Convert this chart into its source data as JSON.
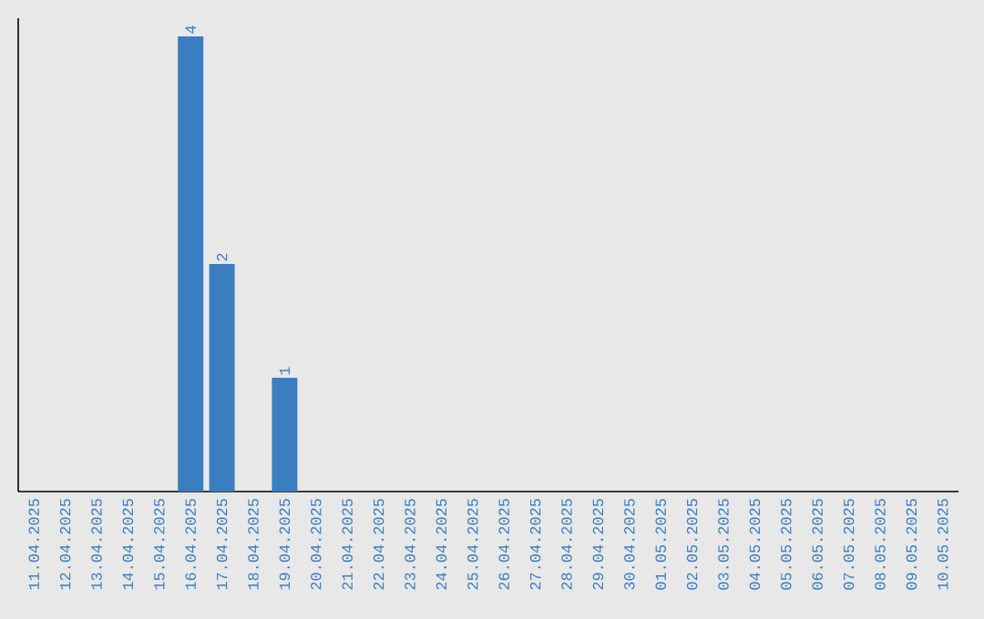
{
  "chart_data": {
    "type": "bar",
    "color": "#3a7ec1",
    "categories": [
      "11.04.2025",
      "12.04.2025",
      "13.04.2025",
      "14.04.2025",
      "15.04.2025",
      "16.04.2025",
      "17.04.2025",
      "18.04.2025",
      "19.04.2025",
      "20.04.2025",
      "21.04.2025",
      "22.04.2025",
      "23.04.2025",
      "24.04.2025",
      "25.04.2025",
      "26.04.2025",
      "27.04.2025",
      "28.04.2025",
      "29.04.2025",
      "30.04.2025",
      "01.05.2025",
      "02.05.2025",
      "03.05.2025",
      "04.05.2025",
      "05.05.2025",
      "06.05.2025",
      "07.05.2025",
      "08.05.2025",
      "09.05.2025",
      "10.05.2025"
    ],
    "values": [
      0,
      0,
      0,
      0,
      0,
      4,
      2,
      0,
      1,
      0,
      0,
      0,
      0,
      0,
      0,
      0,
      0,
      0,
      0,
      0,
      0,
      0,
      0,
      0,
      0,
      0,
      0,
      0,
      0,
      0
    ],
    "value_labels": [
      null,
      null,
      null,
      null,
      null,
      "4",
      "2",
      null,
      "1",
      null,
      null,
      null,
      null,
      null,
      null,
      null,
      null,
      null,
      null,
      null,
      null,
      null,
      null,
      null,
      null,
      null,
      null,
      null,
      null,
      null
    ]
  }
}
